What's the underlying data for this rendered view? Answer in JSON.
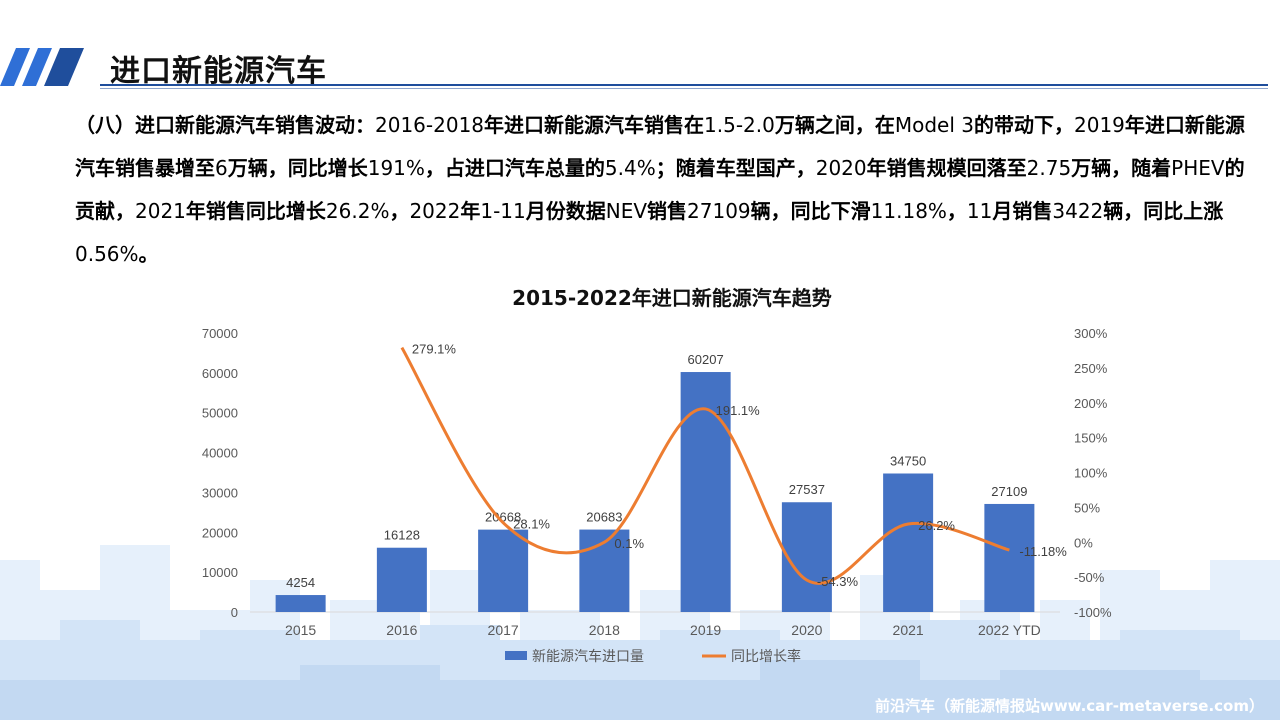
{
  "page": {
    "title": "进口新能源汽车",
    "description": [
      {
        "t": "（八）进口新能源汽车销售波动：",
        "b": true
      },
      {
        "t": "2016-2018",
        "b": false
      },
      {
        "t": "年进口新能源汽车销售在",
        "b": true
      },
      {
        "t": "1.5-2.0",
        "b": false
      },
      {
        "t": "万辆之间，在",
        "b": true
      },
      {
        "t": "Model 3",
        "b": false
      },
      {
        "t": "的带动下，",
        "b": true
      },
      {
        "t": "2019",
        "b": false
      },
      {
        "t": "年进口新能源汽车销售暴增至",
        "b": true
      },
      {
        "t": "6",
        "b": false
      },
      {
        "t": "万辆，同比增长",
        "b": true
      },
      {
        "t": "191%",
        "b": false
      },
      {
        "t": "，占进口汽车总量的",
        "b": true
      },
      {
        "t": "5.4%",
        "b": false
      },
      {
        "t": "；随着车型国产，",
        "b": true
      },
      {
        "t": "2020",
        "b": false
      },
      {
        "t": "年销售规模回落至",
        "b": true
      },
      {
        "t": "2.75",
        "b": false
      },
      {
        "t": "万辆，随着",
        "b": true
      },
      {
        "t": "PHEV",
        "b": false
      },
      {
        "t": "的贡献，",
        "b": true
      },
      {
        "t": "2021",
        "b": false
      },
      {
        "t": "年销售同比增长",
        "b": true
      },
      {
        "t": "26.2%",
        "b": false
      },
      {
        "t": "，",
        "b": true
      },
      {
        "t": "2022",
        "b": false
      },
      {
        "t": "年",
        "b": true
      },
      {
        "t": "1-11",
        "b": false
      },
      {
        "t": "月份数据",
        "b": true
      },
      {
        "t": "NEV",
        "b": false
      },
      {
        "t": "销售",
        "b": true
      },
      {
        "t": "27109",
        "b": false
      },
      {
        "t": "辆，同比下滑",
        "b": true
      },
      {
        "t": "11.18%",
        "b": false
      },
      {
        "t": "，",
        "b": true
      },
      {
        "t": "11",
        "b": false
      },
      {
        "t": "月销售",
        "b": true
      },
      {
        "t": "3422",
        "b": false
      },
      {
        "t": "辆，同比上涨",
        "b": true
      },
      {
        "t": "0.56%",
        "b": false
      },
      {
        "t": "。",
        "b": true
      }
    ],
    "footer": "前沿汽车（新能源情报站www.car-metaverse.com）"
  },
  "colors": {
    "bar": "#4472c4",
    "line": "#ed7d31",
    "accent": "#1f4e9c",
    "stripe": "#2f6fd6",
    "skyline": "#dbe9f8"
  },
  "chart_data": {
    "type": "bar",
    "title": "2015-2022年进口新能源汽车趋势",
    "categories": [
      "2015",
      "2016",
      "2017",
      "2018",
      "2019",
      "2020",
      "2021",
      "2022 YTD"
    ],
    "series": [
      {
        "name": "新能源汽车进口量",
        "type": "bar",
        "axis": "left",
        "values": [
          4254,
          16128,
          20668,
          20683,
          60207,
          27537,
          34750,
          27109
        ],
        "labels": [
          "4254",
          "16128",
          "20668",
          "20683",
          "60207",
          "27537",
          "34750",
          "27109"
        ]
      },
      {
        "name": "同比增长率",
        "type": "line",
        "axis": "right",
        "smooth": true,
        "values": [
          null,
          279.1,
          28.1,
          0.1,
          191.1,
          -54.3,
          26.2,
          -11.18
        ],
        "labels": [
          "",
          "279.1%",
          "28.1%",
          "0.1%",
          "191.1%",
          "-54.3%",
          "26.2%",
          "-11.18%"
        ]
      }
    ],
    "ylim_left": [
      0,
      70000
    ],
    "yticks_left": [
      "0",
      "10000",
      "20000",
      "30000",
      "40000",
      "50000",
      "60000",
      "70000"
    ],
    "ylim_right": [
      -100,
      300
    ],
    "yticks_right": [
      "-100%",
      "-50%",
      "0%",
      "50%",
      "100%",
      "150%",
      "200%",
      "250%",
      "300%"
    ],
    "legend": "bottom",
    "grid": false
  }
}
